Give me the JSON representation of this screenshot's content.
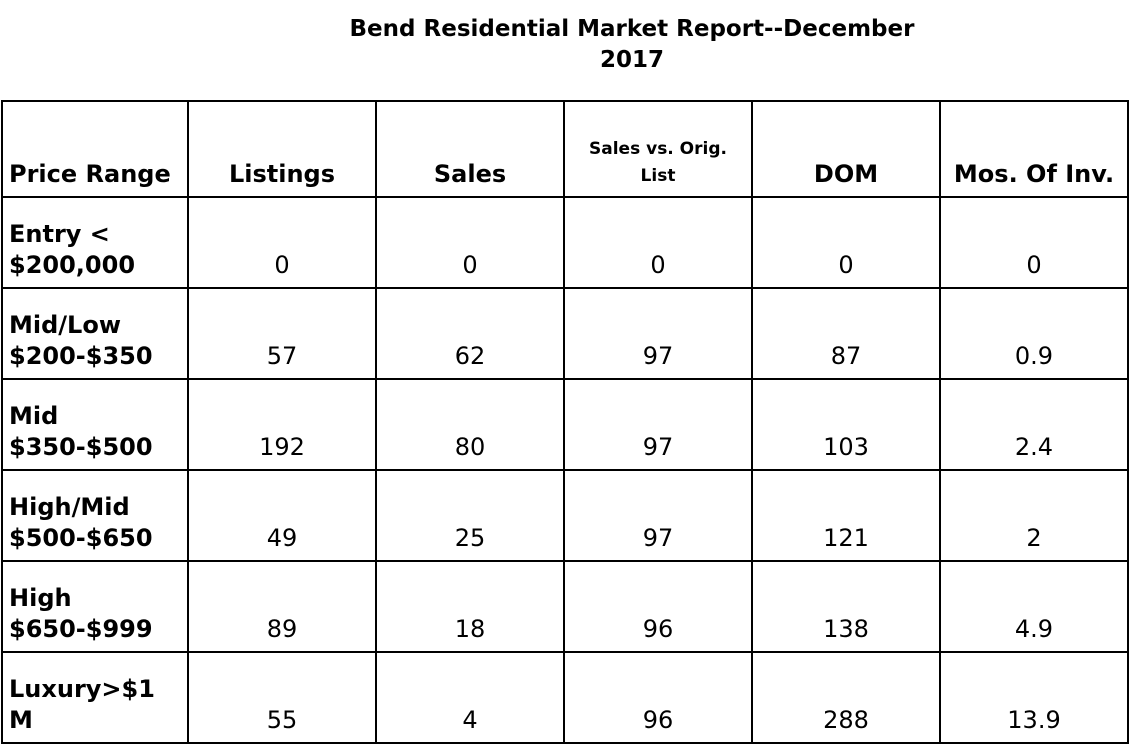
{
  "title": {
    "line1": "Bend Residential Market Report--December",
    "line2": "2017"
  },
  "columns": [
    "Price Range",
    "Listings",
    "Sales",
    "Sales vs. Orig. List",
    "DOM",
    "Mos. Of Inv."
  ],
  "rows": [
    {
      "range": "Entry < $200,000",
      "listings": "0",
      "sales": "0",
      "sales_vs_orig": "0",
      "dom": "0",
      "mos_inv": "0"
    },
    {
      "range": "Mid/Low $200-$350",
      "listings": "57",
      "sales": "62",
      "sales_vs_orig": "97",
      "dom": "87",
      "mos_inv": "0.9"
    },
    {
      "range": "Mid $350-$500",
      "listings": "192",
      "sales": "80",
      "sales_vs_orig": "97",
      "dom": "103",
      "mos_inv": "2.4"
    },
    {
      "range": "High/Mid $500-$650",
      "listings": "49",
      "sales": "25",
      "sales_vs_orig": "97",
      "dom": "121",
      "mos_inv": "2"
    },
    {
      "range": "High $650-$999",
      "listings": "89",
      "sales": "18",
      "sales_vs_orig": "96",
      "dom": "138",
      "mos_inv": "4.9"
    },
    {
      "range": "Luxury>$1 M",
      "listings": "55",
      "sales": "4",
      "sales_vs_orig": "96",
      "dom": "288",
      "mos_inv": "13.9"
    }
  ]
}
